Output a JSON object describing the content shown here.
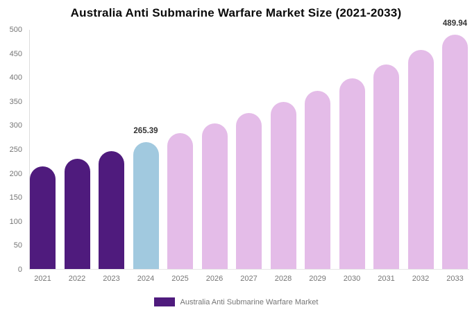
{
  "chart_data": {
    "type": "bar",
    "title": "Australia Anti Submarine Warfare Market Size (2021-2033)",
    "categories": [
      "2021",
      "2022",
      "2023",
      "2024",
      "2025",
      "2026",
      "2027",
      "2028",
      "2029",
      "2030",
      "2031",
      "2032",
      "2033"
    ],
    "values": [
      215,
      230,
      247,
      265.39,
      284,
      304,
      326,
      349,
      373,
      399,
      428,
      458,
      489.94
    ],
    "bar_roles": [
      "historical",
      "historical",
      "historical",
      "highlight",
      "forecast",
      "forecast",
      "forecast",
      "forecast",
      "forecast",
      "forecast",
      "forecast",
      "forecast",
      "forecast"
    ],
    "colors": {
      "historical": "#4F1B7D",
      "highlight": "#A1C9DF",
      "forecast": "#E4BCE8"
    },
    "ylim": [
      0,
      500
    ],
    "ytick_step": 50,
    "grid": false,
    "legend_position": "bottom-center",
    "annotations": [
      {
        "category": "2024",
        "text": "265.39"
      },
      {
        "category": "2033",
        "text": "489.94"
      }
    ],
    "legend": [
      {
        "label": "Australia Anti Submarine Warfare Market",
        "color": "#4F1B7D"
      }
    ]
  }
}
